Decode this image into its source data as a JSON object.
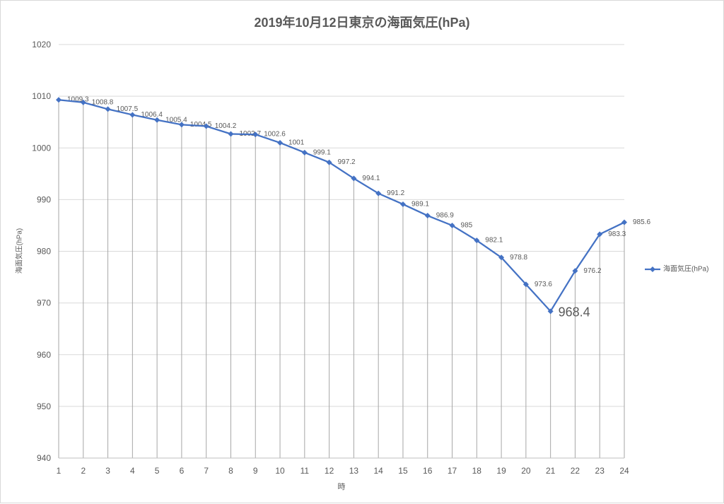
{
  "chart_data": {
    "type": "line",
    "title": "2019年10月12日東京の海面気圧(hPa)",
    "xlabel": "時",
    "ylabel": "海面気圧(hPa)",
    "x": [
      1,
      2,
      3,
      4,
      5,
      6,
      7,
      8,
      9,
      10,
      11,
      12,
      13,
      14,
      15,
      16,
      17,
      18,
      19,
      20,
      21,
      22,
      23,
      24
    ],
    "series": [
      {
        "name": "海面気圧(hPa)",
        "color": "#4472C4",
        "marker": "diamond",
        "values": [
          1009.3,
          1008.8,
          1007.5,
          1006.4,
          1005.4,
          1004.5,
          1004.2,
          1002.7,
          1002.6,
          1001,
          999.1,
          997.2,
          994.1,
          991.2,
          989.1,
          986.9,
          985,
          982.1,
          978.8,
          973.6,
          968.4,
          976.2,
          983.3,
          985.6
        ]
      }
    ],
    "ylim": [
      940,
      1020
    ],
    "yticks": [
      940,
      950,
      960,
      970,
      980,
      990,
      1000,
      1010,
      1020
    ],
    "grid": true,
    "drop_lines": true,
    "data_labels": true,
    "legend": "right"
  }
}
